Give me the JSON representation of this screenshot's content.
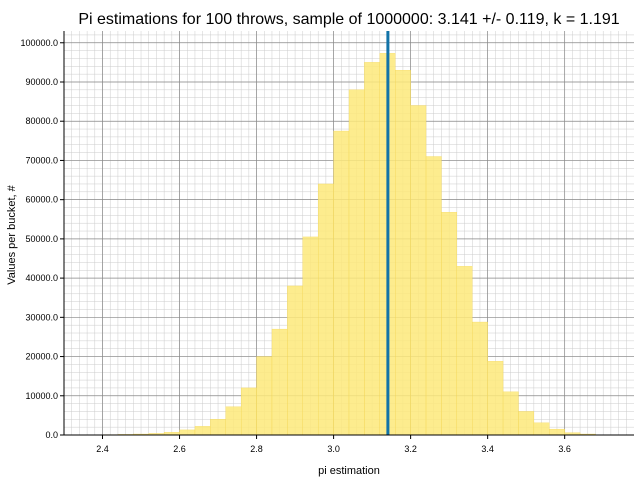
{
  "chart_data": {
    "type": "bar",
    "title": "Pi estimations for 100 throws, sample of 1000000: 3.141 +/- 0.119, k = 1.191",
    "xlabel": "pi estimation",
    "ylabel": "Values per bucket, #",
    "xlim": [
      2.3,
      3.78
    ],
    "ylim": [
      0,
      103000
    ],
    "x_ticks": [
      2.4,
      2.6,
      2.8,
      3.0,
      3.2,
      3.4,
      3.6
    ],
    "x_tick_labels": [
      "2.4",
      "2.6",
      "2.8",
      "3.0",
      "3.2",
      "3.4",
      "3.6"
    ],
    "y_ticks": [
      0,
      10000,
      20000,
      30000,
      40000,
      50000,
      60000,
      70000,
      80000,
      90000,
      100000
    ],
    "y_tick_labels": [
      "0.0",
      "10000.0",
      "20000.0",
      "30000.0",
      "40000.0",
      "50000.0",
      "60000.0",
      "70000.0",
      "80000.0",
      "90000.0",
      "100000.0"
    ],
    "bin_width": 0.04,
    "bin_starts": [
      2.36,
      2.4,
      2.44,
      2.48,
      2.52,
      2.56,
      2.6,
      2.64,
      2.68,
      2.72,
      2.76,
      2.8,
      2.84,
      2.88,
      2.92,
      2.96,
      3.0,
      3.04,
      3.08,
      3.12,
      3.16,
      3.2,
      3.24,
      3.28,
      3.32,
      3.36,
      3.4,
      3.44,
      3.48,
      3.52,
      3.56,
      3.6,
      3.64,
      3.68
    ],
    "values": [
      50,
      100,
      150,
      250,
      400,
      700,
      1300,
      2200,
      4000,
      7200,
      12000,
      20000,
      27000,
      38000,
      50500,
      64000,
      77500,
      88000,
      95000,
      97300,
      93000,
      84000,
      71000,
      56800,
      43000,
      28800,
      18800,
      11000,
      6000,
      3100,
      1500,
      600,
      250,
      80
    ],
    "mean_line": 3.141,
    "colors": {
      "bar": "#fde97a",
      "bar_edge": "#f5d54c",
      "mean_line": "#1273a8",
      "grid_major": "#888888",
      "grid_minor": "#cccccc"
    },
    "grid": true,
    "minor_grid": true
  }
}
